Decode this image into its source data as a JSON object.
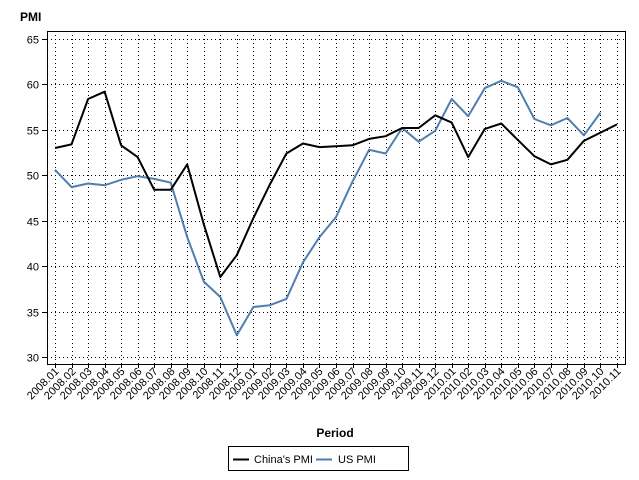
{
  "chart_data": {
    "type": "line",
    "title": "",
    "ylabel": "PMI",
    "xlabel": "Period",
    "ylim": [
      30,
      65
    ],
    "yticks": [
      30,
      35,
      40,
      45,
      50,
      55,
      60,
      65
    ],
    "grid": true,
    "legend_position": "bottom-center",
    "categories": [
      "2008.01",
      "2008.02",
      "2008.03",
      "2008.04",
      "2008.05",
      "2008.06",
      "2008.07",
      "2008.08",
      "2008.09",
      "2008.10",
      "2008.11",
      "2008.12",
      "2009.01",
      "2009.02",
      "2009.03",
      "2009.04",
      "2009.05",
      "2009.06",
      "2009.07",
      "2009.08",
      "2009.09",
      "2009.10",
      "2009.11",
      "2009.12",
      "2010.01",
      "2010.02",
      "2010.03",
      "2010.04",
      "2010.05",
      "2010.06",
      "2010.07",
      "2010.08",
      "2010.09",
      "2010.10",
      "2010.11"
    ],
    "series": [
      {
        "name": "China's PMI",
        "color": "#000000",
        "values": [
          53.0,
          53.4,
          58.4,
          59.2,
          53.3,
          52.0,
          48.4,
          48.4,
          51.2,
          44.6,
          38.8,
          41.2,
          45.3,
          49.0,
          52.4,
          53.5,
          53.1,
          53.2,
          53.3,
          54.0,
          54.3,
          55.2,
          55.2,
          56.6,
          55.8,
          52.0,
          55.1,
          55.7,
          53.9,
          52.1,
          51.2,
          51.7,
          53.8,
          54.7,
          55.6
        ]
      },
      {
        "name": "US PMI",
        "color": "#4f7eb0",
        "values": [
          50.6,
          48.7,
          49.1,
          48.9,
          49.5,
          49.9,
          49.6,
          49.2,
          43.2,
          38.3,
          36.6,
          32.4,
          35.5,
          35.7,
          36.4,
          40.4,
          43.2,
          45.4,
          49.3,
          52.8,
          52.4,
          55.2,
          53.7,
          54.9,
          58.4,
          56.5,
          59.6,
          60.4,
          59.7,
          56.2,
          55.5,
          56.3,
          54.4,
          56.9,
          null
        ]
      }
    ]
  }
}
